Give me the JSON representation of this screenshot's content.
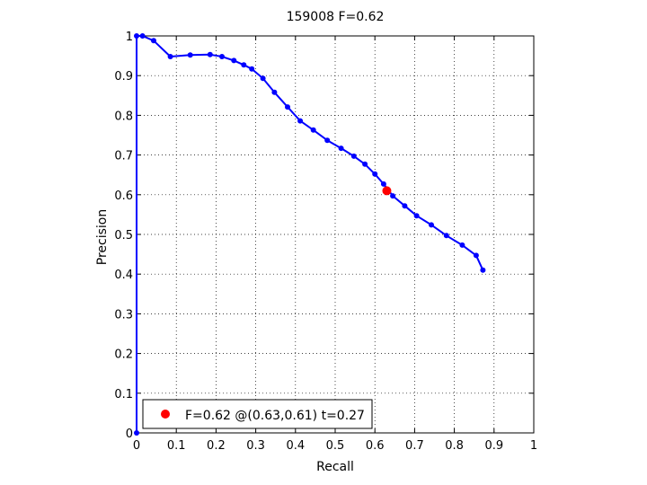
{
  "chart_data": {
    "type": "line",
    "title": "159008 F=0.62",
    "xlabel": "Recall",
    "ylabel": "Precision",
    "xlim": [
      0,
      1
    ],
    "ylim": [
      0,
      1
    ],
    "grid": true,
    "legend_position": "bottom-left",
    "x_ticks": [
      "0",
      "0.1",
      "0.2",
      "0.3",
      "0.4",
      "0.5",
      "0.6",
      "0.7",
      "0.8",
      "0.9",
      "1"
    ],
    "y_ticks": [
      "0",
      "0.1",
      "0.2",
      "0.3",
      "0.4",
      "0.5",
      "0.6",
      "0.7",
      "0.8",
      "0.9",
      "1"
    ],
    "series": [
      {
        "color": "#0000ff",
        "marker": "dot",
        "points": [
          [
            0,
            0
          ],
          [
            0.0,
            1.0
          ],
          [
            0.015,
            1.0
          ],
          [
            0.043,
            0.988
          ],
          [
            0.085,
            0.948
          ],
          [
            0.135,
            0.952
          ],
          [
            0.185,
            0.953
          ],
          [
            0.215,
            0.948
          ],
          [
            0.245,
            0.938
          ],
          [
            0.27,
            0.927
          ],
          [
            0.29,
            0.917
          ],
          [
            0.318,
            0.893
          ],
          [
            0.347,
            0.858
          ],
          [
            0.38,
            0.821
          ],
          [
            0.412,
            0.786
          ],
          [
            0.445,
            0.763
          ],
          [
            0.48,
            0.737
          ],
          [
            0.515,
            0.717
          ],
          [
            0.547,
            0.697
          ],
          [
            0.575,
            0.677
          ],
          [
            0.6,
            0.652
          ],
          [
            0.622,
            0.627
          ],
          [
            0.645,
            0.597
          ],
          [
            0.675,
            0.572
          ],
          [
            0.705,
            0.547
          ],
          [
            0.742,
            0.524
          ],
          [
            0.78,
            0.497
          ],
          [
            0.82,
            0.473
          ],
          [
            0.855,
            0.447
          ],
          [
            0.872,
            0.41
          ]
        ]
      }
    ],
    "highlight": {
      "color": "#ff0000",
      "x": 0.63,
      "y": 0.61,
      "legend": "F=0.62 @(0.63,0.61) t=0.27"
    }
  }
}
